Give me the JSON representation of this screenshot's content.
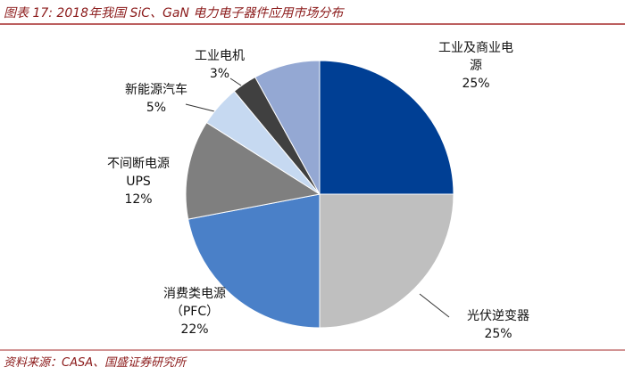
{
  "chart_data": {
    "type": "pie",
    "title": "图表 17: 2018年我国 SiC、GaN 电力电子器件应用市场分布",
    "source": "资料来源：CASA、国盛证券研究所",
    "categories": [
      "工业及商业电源",
      "光伏逆变器",
      "消费类电源（PFC）",
      "不间断电源 UPS",
      "新能源汽车",
      "工业电机",
      null
    ],
    "values": [
      25,
      25,
      22,
      12,
      5,
      3,
      8
    ],
    "value_labels": [
      "25%",
      "25%",
      "22%",
      "12%",
      "5%",
      "3%",
      null
    ],
    "colors": [
      "#003f94",
      "#bfbfbf",
      "#4a80c8",
      "#7f7f7f",
      "#c6d9f1",
      "#404040",
      "#94a8d3"
    ]
  }
}
